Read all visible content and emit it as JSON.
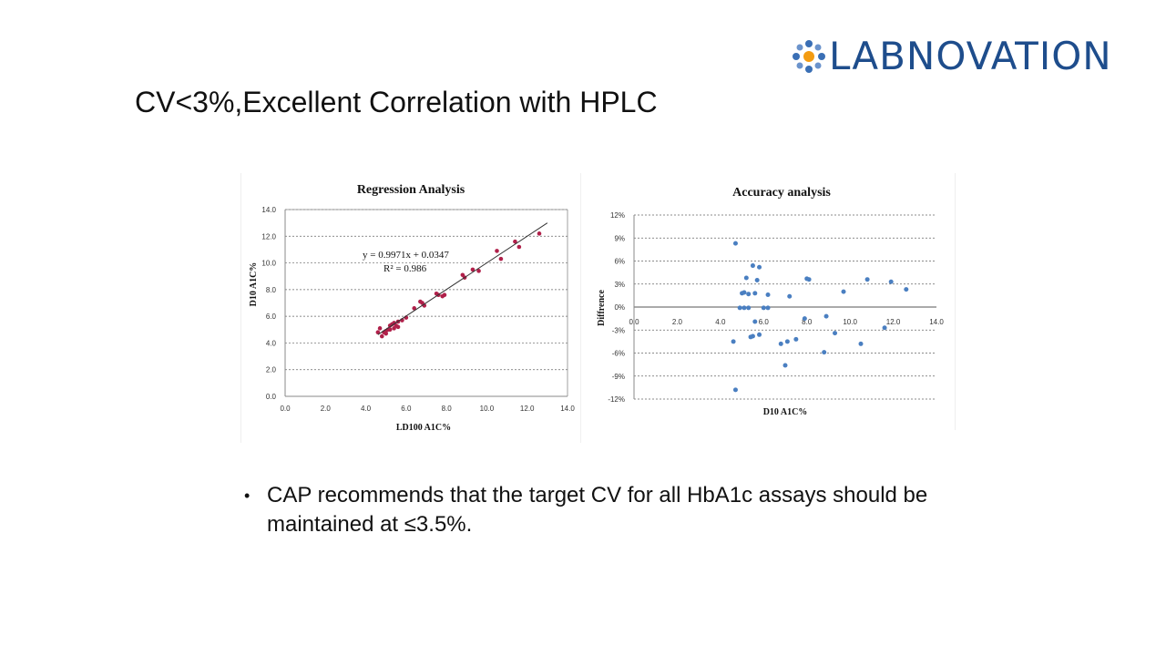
{
  "slide": {
    "title": "CV<3%,Excellent Correlation with HPLC",
    "bullet": "CAP recommends that the target CV for all HbA1c assays should be maintained at ≤3.5%.",
    "bullet_marker": "•"
  },
  "logo": {
    "text": "LABNOVATION",
    "color": "#1e4d8c",
    "accent": "#f39c12"
  },
  "colors": {
    "regression_points": "#b0204a",
    "accuracy_points": "#4a7fc1",
    "fit_line": "#333333"
  },
  "chart_data": [
    {
      "type": "scatter",
      "title": "Regression Analysis",
      "xlabel": "LD100 A1C%",
      "ylabel": "D10 A1C%",
      "xlim": [
        0,
        14
      ],
      "ylim": [
        0,
        14
      ],
      "xticks": [
        "0.0",
        "2.0",
        "4.0",
        "6.0",
        "8.0",
        "10.0",
        "12.0",
        "14.0"
      ],
      "yticks": [
        "0.0",
        "2.0",
        "4.0",
        "6.0",
        "8.0",
        "10.0",
        "12.0",
        "14.0"
      ],
      "grid": true,
      "trendline": {
        "slope": 0.9971,
        "intercept": 0.0347,
        "x_range": [
          4.6,
          13.0
        ]
      },
      "annotations": [
        "y = 0.9971x + 0.0347",
        "R² = 0.986"
      ],
      "points": [
        [
          4.6,
          4.8
        ],
        [
          4.7,
          5.1
        ],
        [
          4.8,
          4.5
        ],
        [
          4.9,
          4.8
        ],
        [
          5.0,
          4.9
        ],
        [
          5.0,
          4.7
        ],
        [
          5.1,
          5.0
        ],
        [
          5.2,
          5.0
        ],
        [
          5.2,
          5.3
        ],
        [
          5.3,
          5.4
        ],
        [
          5.4,
          5.1
        ],
        [
          5.4,
          5.5
        ],
        [
          5.5,
          5.3
        ],
        [
          5.6,
          5.6
        ],
        [
          5.6,
          5.2
        ],
        [
          5.8,
          5.7
        ],
        [
          6.0,
          5.9
        ],
        [
          6.4,
          6.6
        ],
        [
          6.7,
          7.1
        ],
        [
          6.8,
          7.0
        ],
        [
          6.9,
          6.8
        ],
        [
          7.5,
          7.7
        ],
        [
          7.6,
          7.6
        ],
        [
          7.8,
          7.5
        ],
        [
          7.9,
          7.6
        ],
        [
          8.8,
          9.1
        ],
        [
          8.9,
          8.9
        ],
        [
          9.3,
          9.5
        ],
        [
          9.6,
          9.4
        ],
        [
          10.5,
          10.9
        ],
        [
          10.7,
          10.3
        ],
        [
          11.4,
          11.6
        ],
        [
          11.6,
          11.2
        ],
        [
          12.6,
          12.2
        ]
      ]
    },
    {
      "type": "scatter",
      "title": "Accuracy  analysis",
      "xlabel": "D10 A1C%",
      "ylabel": "Diffrence",
      "xlim": [
        0,
        14
      ],
      "ylim": [
        -12,
        12
      ],
      "xticks": [
        "0.0",
        "2.0",
        "4.0",
        "6.0",
        "8.0",
        "10.0",
        "12.0",
        "14.0"
      ],
      "yticks": [
        "12%",
        "9%",
        "6%",
        "3%",
        "0%",
        "-3%",
        "-6%",
        "-9%",
        "-12%"
      ],
      "grid": true,
      "points": [
        [
          4.7,
          8.3
        ],
        [
          4.7,
          -10.8
        ],
        [
          4.6,
          -4.5
        ],
        [
          4.9,
          -0.1
        ],
        [
          5.0,
          1.8
        ],
        [
          5.1,
          1.9
        ],
        [
          5.1,
          -0.1
        ],
        [
          5.2,
          3.8
        ],
        [
          5.3,
          -0.1
        ],
        [
          5.3,
          1.7
        ],
        [
          5.4,
          -3.9
        ],
        [
          5.5,
          -3.8
        ],
        [
          5.5,
          5.4
        ],
        [
          5.6,
          -1.9
        ],
        [
          5.6,
          1.8
        ],
        [
          5.7,
          3.5
        ],
        [
          5.8,
          5.2
        ],
        [
          5.8,
          -3.6
        ],
        [
          6.0,
          -0.1
        ],
        [
          6.2,
          -0.1
        ],
        [
          6.2,
          1.6
        ],
        [
          6.8,
          -4.8
        ],
        [
          7.0,
          -7.6
        ],
        [
          7.1,
          -4.5
        ],
        [
          7.2,
          1.4
        ],
        [
          7.5,
          -4.2
        ],
        [
          8.0,
          3.7
        ],
        [
          8.1,
          3.6
        ],
        [
          7.9,
          -1.5
        ],
        [
          8.8,
          -5.9
        ],
        [
          8.9,
          -1.2
        ],
        [
          9.3,
          -3.4
        ],
        [
          9.7,
          2.0
        ],
        [
          10.5,
          -4.8
        ],
        [
          10.8,
          3.6
        ],
        [
          11.6,
          -2.7
        ],
        [
          11.9,
          3.3
        ],
        [
          12.6,
          2.3
        ]
      ]
    }
  ]
}
